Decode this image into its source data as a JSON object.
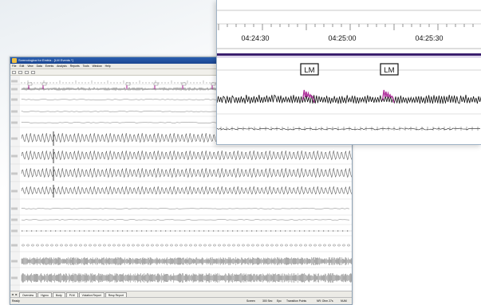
{
  "app": {
    "title": "Somnologica for Embla - [LM Events *]",
    "menu": [
      "File",
      "Edit",
      "View",
      "Data",
      "Events",
      "Analysis",
      "Reports",
      "Tools",
      "Window",
      "Help"
    ],
    "tabs": [
      "Overview",
      "Hypno",
      "Body",
      "PLM",
      "Violation Report",
      "Resp Report"
    ],
    "status": {
      "left": "Ready",
      "s1": "Screen",
      "s2": "300 Sec",
      "s3": "Epc",
      "s4": "Transition Points",
      "s5": "NR: Ohm 27s",
      "s6": "NUM"
    }
  },
  "zoom": {
    "times": [
      "04:24:30",
      "04:25:00",
      "04:25:30"
    ],
    "events": [
      "LM",
      "LM"
    ]
  },
  "colors": {
    "accent": "#3a1f6e",
    "event": "#b0309c",
    "trace": "#111111"
  }
}
